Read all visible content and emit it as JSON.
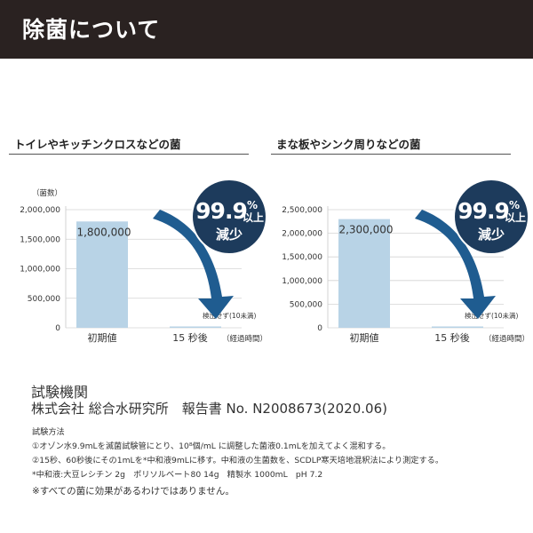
{
  "header": {
    "title": "除菌について"
  },
  "colors": {
    "header_bg": "#2a2221",
    "bar": "#b8d3e6",
    "badge": "#1d3b5c",
    "arrow": "#1f5c90"
  },
  "chart_data": [
    {
      "type": "bar",
      "title": "トイレやキッチンクロスなどの菌",
      "unit_label": "（菌数）",
      "ylim": [
        0,
        2000000
      ],
      "yticks": [
        "2,000,000",
        "1,500,000",
        "1,000,000",
        "500,000",
        "0"
      ],
      "ytick_values": [
        2000000,
        1500000,
        1000000,
        500000,
        0
      ],
      "categories": [
        "初期値",
        "15 秒後"
      ],
      "category_note": "（経過時間）",
      "values": [
        1800000,
        0
      ],
      "value_labels": [
        "1,800,000",
        "検出せず(10未満)"
      ],
      "badge": {
        "number": "99.9",
        "percent": "%",
        "suffix": "以上",
        "word": "減少"
      }
    },
    {
      "type": "bar",
      "title": "まな板やシンク周りなどの菌",
      "unit_label": "",
      "ylim": [
        0,
        2500000
      ],
      "yticks": [
        "2,500,000",
        "2,000,000",
        "1,500,000",
        "1,000,000",
        "500,000",
        "0"
      ],
      "ytick_values": [
        2500000,
        2000000,
        1500000,
        1000000,
        500000,
        0
      ],
      "categories": [
        "初期値",
        "15 秒後"
      ],
      "category_note": "（経過時間）",
      "values": [
        2300000,
        0
      ],
      "value_labels": [
        "2,300,000",
        "検出せず(10未満)"
      ],
      "badge": {
        "number": "99.9",
        "percent": "%",
        "suffix": "以上",
        "word": "減少"
      }
    }
  ],
  "lab": {
    "title": "試験機関",
    "detail": "株式会社 総合水研究所　報告書 No. N2008673(2020.06)"
  },
  "method": {
    "title": "試験方法",
    "lines": [
      "①オゾン水9.9mLを滅菌試験管にとり、10⁸個/mL に調整した菌液0.1mLを加えてよく混和する。",
      "②15秒、60秒後にその1mLを*中和液9mLに移す。中和液の生菌数を、SCDLP寒天培地混釈法により測定する。",
      "*中和液:大豆レシチン 2g　ポリソルベート80 14g　精製水 1000mL　pH 7.2"
    ]
  },
  "footnote": "※すべての菌に効果があるわけではありません。"
}
